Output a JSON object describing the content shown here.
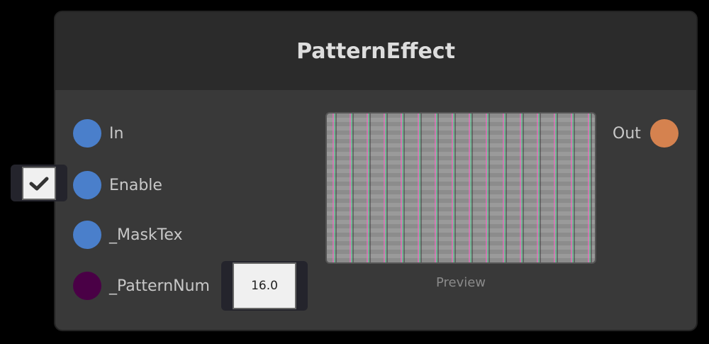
{
  "node": {
    "title": "PatternEffect",
    "preview_label": "Preview"
  },
  "inputs": [
    {
      "label": "In",
      "color": "#4a7fcb"
    },
    {
      "label": "Enable",
      "color": "#4a7fcb",
      "checked": true
    },
    {
      "label": "_MaskTex",
      "color": "#4a7fcb"
    },
    {
      "label": "_PatternNum",
      "color": "#4a0046",
      "value": "16.0"
    }
  ],
  "outputs": [
    {
      "label": "Out",
      "color": "#d5824f"
    }
  ]
}
